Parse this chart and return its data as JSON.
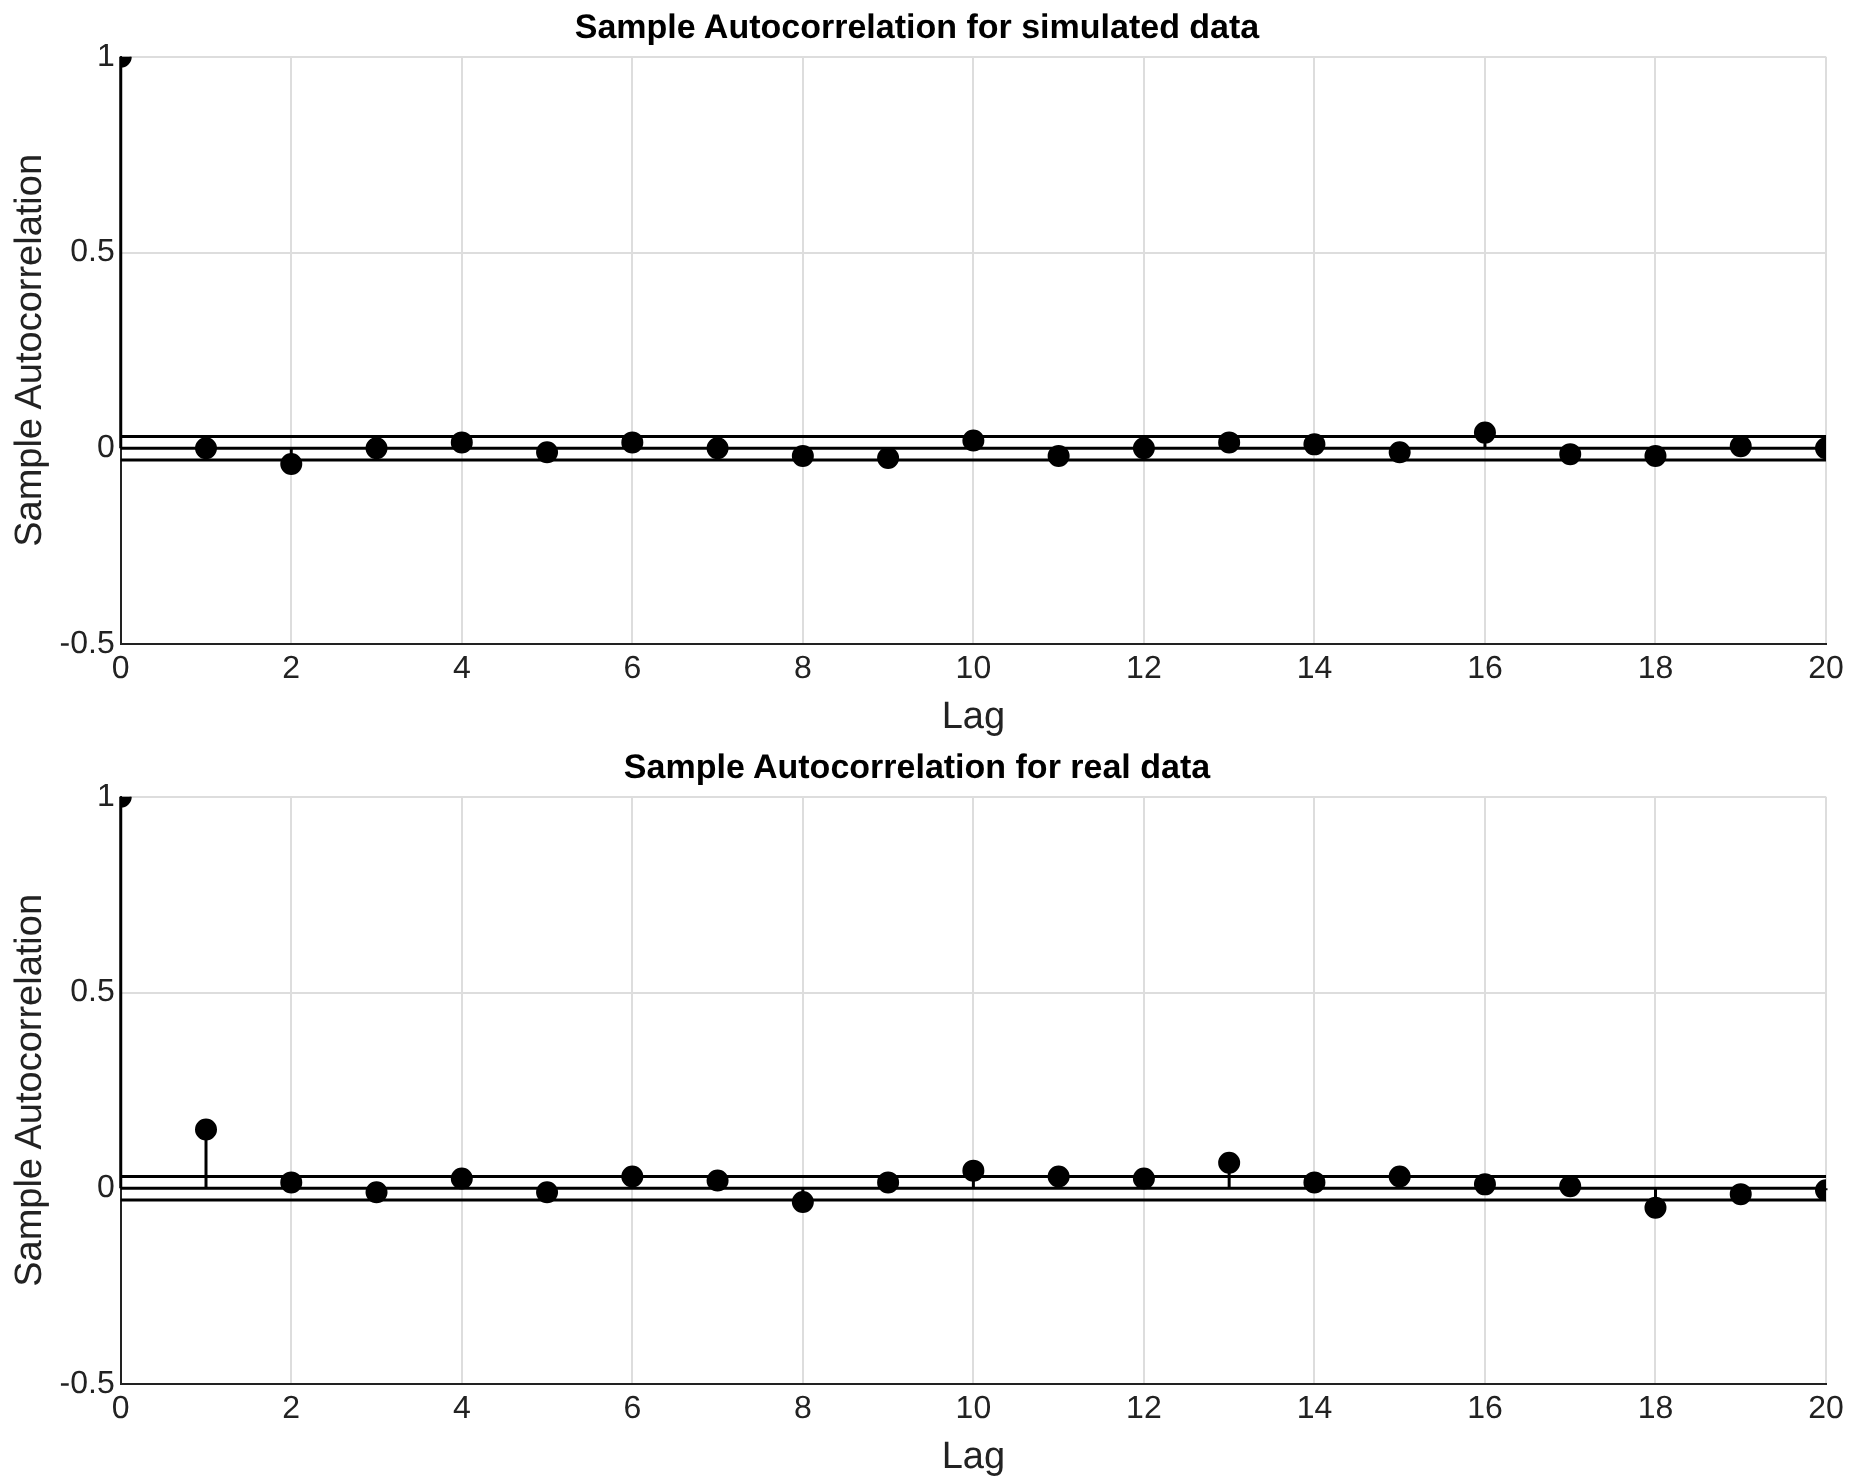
{
  "chart_data": [
    {
      "type": "lollipop",
      "title": "Sample Autocorrelation for simulated data",
      "xlabel": "Lag",
      "ylabel": "Sample Autocorrelation",
      "x": [
        0,
        1,
        2,
        3,
        4,
        5,
        6,
        7,
        8,
        9,
        10,
        11,
        12,
        13,
        14,
        15,
        16,
        17,
        18,
        19,
        20
      ],
      "series": [
        {
          "color": "#000000",
          "values": [
            1,
            0,
            -0.04,
            0,
            0.015,
            -0.01,
            0.015,
            0,
            -0.02,
            -0.025,
            0.02,
            -0.02,
            0,
            0.015,
            0.01,
            -0.01,
            0.04,
            -0.015,
            -0.02,
            0.005,
            0
          ]
        }
      ],
      "xlim": [
        0,
        20
      ],
      "xticks": [
        0,
        2,
        4,
        6,
        8,
        10,
        12,
        14,
        16,
        18,
        20
      ],
      "ylim": [
        -0.5,
        1
      ],
      "yticks": [
        -0.5,
        0,
        0.5,
        1
      ],
      "grid": true,
      "marker": "circle",
      "ref_lines": [
        {
          "axis": "y",
          "value": 0.03,
          "color": "#000000"
        },
        {
          "axis": "y",
          "value": -0.03,
          "color": "#000000"
        }
      ]
    },
    {
      "type": "lollipop",
      "title": "Sample Autocorrelation for real data",
      "xlabel": "Lag",
      "ylabel": "Sample Autocorrelation",
      "x": [
        0,
        1,
        2,
        3,
        4,
        5,
        6,
        7,
        8,
        9,
        10,
        11,
        12,
        13,
        14,
        15,
        16,
        17,
        18,
        19,
        20
      ],
      "series": [
        {
          "color": "#000000",
          "values": [
            1,
            0.15,
            0.015,
            -0.01,
            0.025,
            -0.01,
            0.03,
            0.02,
            -0.035,
            0.015,
            0.045,
            0.03,
            0.025,
            0.065,
            0.015,
            0.03,
            0.01,
            0.005,
            -0.05,
            -0.015,
            -0.005
          ]
        }
      ],
      "xlim": [
        0,
        20
      ],
      "xticks": [
        0,
        2,
        4,
        6,
        8,
        10,
        12,
        14,
        16,
        18,
        20
      ],
      "ylim": [
        -0.5,
        1
      ],
      "yticks": [
        -0.5,
        0,
        0.5,
        1
      ],
      "grid": true,
      "marker": "circle",
      "ref_lines": [
        {
          "axis": "y",
          "value": 0.03,
          "color": "#000000"
        },
        {
          "axis": "y",
          "value": -0.03,
          "color": "#000000"
        }
      ]
    }
  ]
}
